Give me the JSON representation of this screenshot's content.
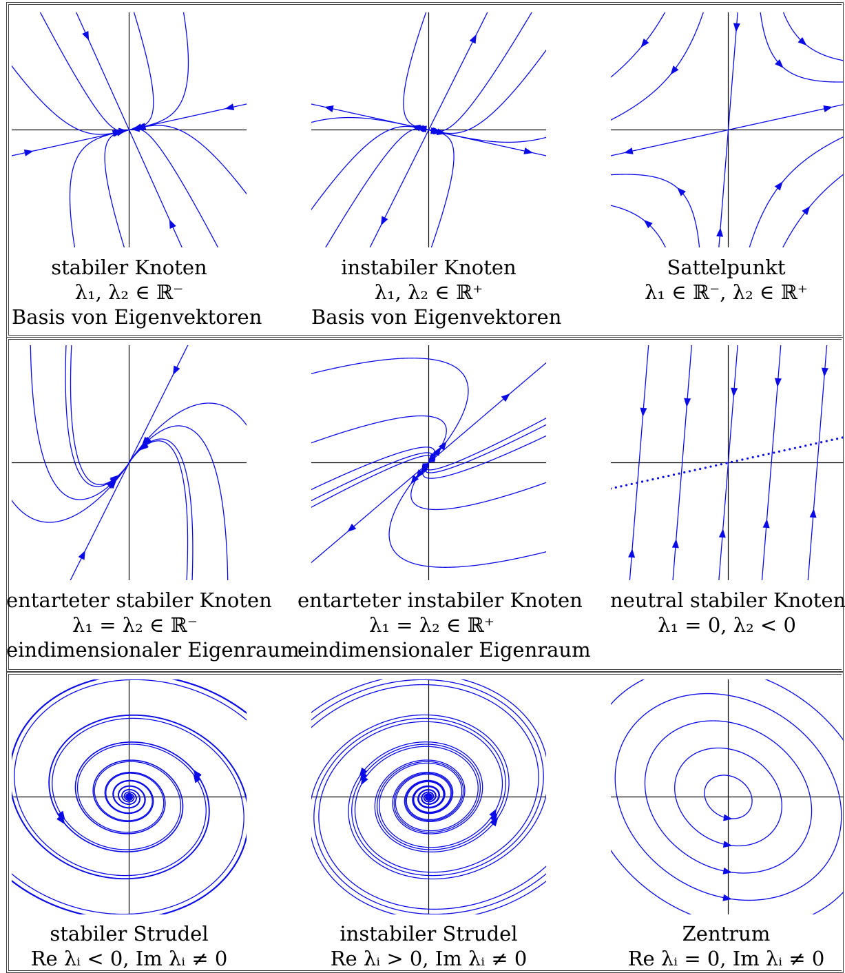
{
  "colors": {
    "curve": "#0a0ae6",
    "axis": "#000000",
    "border": "#444444"
  },
  "panels": [
    {
      "id": "stable-node",
      "lines": [
        "stabiler Knoten",
        "λ₁, λ₂ ∈ ℝ⁻",
        "Basis von Eigenvektoren"
      ]
    },
    {
      "id": "unstable-node",
      "lines": [
        "instabiler Knoten",
        "λ₁, λ₂ ∈ ℝ⁺",
        "Basis von Eigenvektoren"
      ]
    },
    {
      "id": "saddle",
      "lines": [
        "Sattelpunkt",
        "λ₁ ∈ ℝ⁻, λ₂ ∈ ℝ⁺",
        ""
      ]
    },
    {
      "id": "degenerate-stable-node",
      "lines": [
        "entarteter stabiler Knoten",
        "λ₁ = λ₂ ∈ ℝ⁻",
        "eindimensionaler Eigenraum"
      ]
    },
    {
      "id": "degenerate-unstable-node",
      "lines": [
        "entarteter instabiler Knoten",
        "λ₁ = λ₂ ∈ ℝ⁺",
        "eindimensionaler Eigenraum"
      ]
    },
    {
      "id": "neutral-stable-node",
      "lines": [
        "neutral stabiler Knoten",
        "λ₁ = 0, λ₂ < 0",
        ""
      ]
    },
    {
      "id": "stable-spiral",
      "lines": [
        "stabiler Strudel",
        "Re λᵢ < 0, Im λᵢ ≠ 0",
        ""
      ]
    },
    {
      "id": "unstable-spiral",
      "lines": [
        "instabiler Strudel",
        "Re λᵢ > 0, Im λᵢ ≠ 0",
        ""
      ]
    },
    {
      "id": "center",
      "lines": [
        "Zentrum",
        "Re λᵢ = 0, Im λᵢ ≠ 0",
        ""
      ]
    }
  ]
}
